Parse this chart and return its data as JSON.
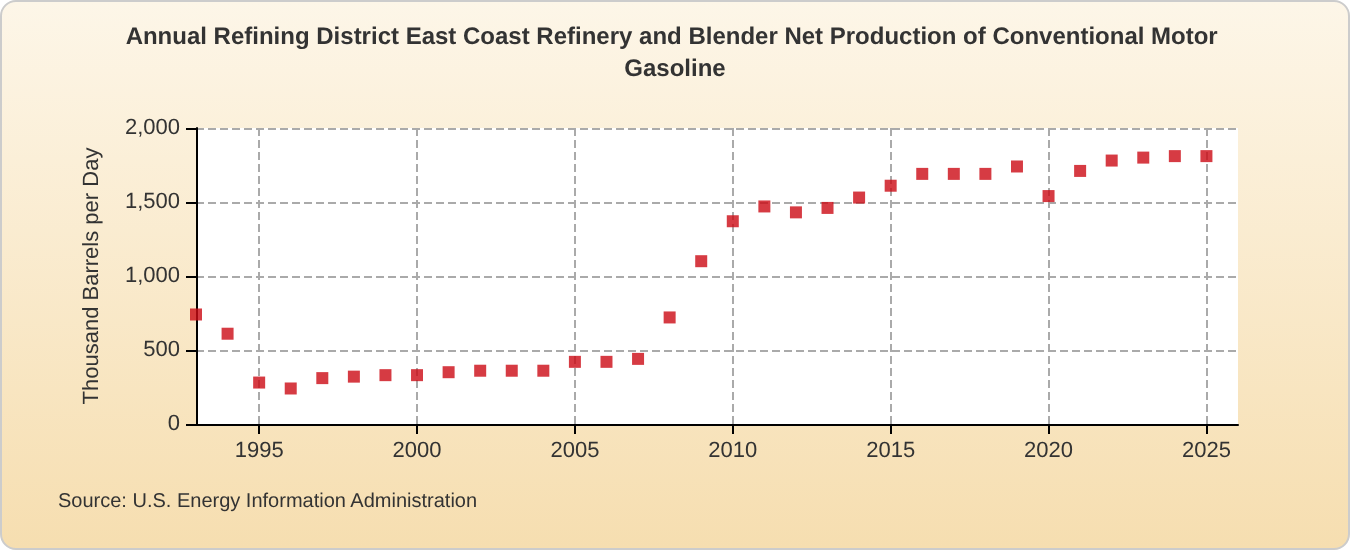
{
  "chart_data": {
    "type": "scatter",
    "title": "Annual Refining District East Coast Refinery and Blender Net Production of Conventional Motor Gasoline",
    "ylabel": "Thousand Barrels per Day",
    "annotations": [
      "Source: U.S. Energy Information Administration"
    ],
    "x": [
      1993,
      1994,
      1995,
      1996,
      1997,
      1998,
      1999,
      2000,
      2001,
      2002,
      2003,
      2004,
      2005,
      2006,
      2007,
      2008,
      2009,
      2010,
      2011,
      2012,
      2013,
      2014,
      2015,
      2016,
      2017,
      2018,
      2019,
      2020,
      2021,
      2022,
      2023,
      2024,
      2025
    ],
    "series": [
      {
        "color": "#cc0a14",
        "values": [
          740,
          610,
          280,
          240,
          310,
          320,
          330,
          330,
          350,
          360,
          360,
          360,
          420,
          420,
          440,
          720,
          1100,
          1370,
          1470,
          1430,
          1460,
          1530,
          1610,
          1690,
          1690,
          1690,
          1740,
          1540,
          1710,
          1780,
          1800,
          1810,
          1810
        ]
      }
    ],
    "xlim": [
      1993,
      2026
    ],
    "xticks": [
      1995,
      2000,
      2005,
      2010,
      2015,
      2020,
      2025
    ],
    "ylim": [
      0,
      2000
    ],
    "yticks": [
      0,
      500,
      {
        "value": 1000,
        "label": "1,000"
      },
      {
        "value": 1500,
        "label": "1,500"
      },
      {
        "value": 2000,
        "label": "2,000"
      }
    ],
    "grid": true,
    "marker": "square"
  }
}
